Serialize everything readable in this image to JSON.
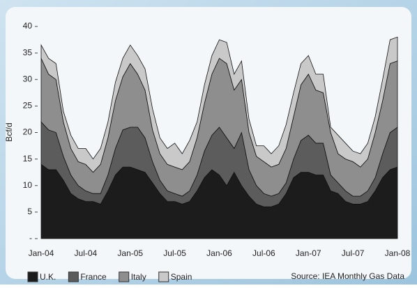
{
  "chart_data": {
    "type": "stacked_area",
    "y_label": "Bcf/d",
    "source": "Source: IEA Monthly Gas Data",
    "categories": [
      "Jan-04",
      null,
      null,
      null,
      null,
      null,
      "Jul-04",
      null,
      null,
      null,
      null,
      null,
      "Jan-05",
      null,
      null,
      null,
      null,
      null,
      "Jul-05",
      null,
      null,
      null,
      null,
      null,
      "Jan-06",
      null,
      null,
      null,
      null,
      null,
      "Jul-06",
      null,
      null,
      null,
      null,
      null,
      "Jan-07",
      null,
      null,
      null,
      null,
      null,
      "Jul-07",
      null,
      null,
      null,
      null,
      null,
      "Jan-08"
    ],
    "series": [
      {
        "name": "U.K.",
        "color": "#1c1c1c",
        "values": [
          14,
          13,
          13,
          11,
          8.5,
          7.5,
          7,
          7,
          6.5,
          9,
          12,
          13.5,
          13.5,
          13,
          12.5,
          10.5,
          8.5,
          7,
          7,
          6.5,
          7,
          9,
          11.5,
          13,
          12,
          10,
          12.5,
          10,
          8,
          6.5,
          6,
          6,
          6.5,
          8.5,
          11.5,
          12.5,
          12.5,
          12,
          12,
          9,
          8.5,
          7,
          6.5,
          6.5,
          7,
          9,
          11.5,
          13,
          13.5
        ]
      },
      {
        "name": "France",
        "color": "#5c5c5c",
        "values": [
          8,
          7.5,
          7,
          4.5,
          3.5,
          2.5,
          2,
          1.5,
          2,
          3,
          5,
          7,
          7.5,
          8,
          6.5,
          4,
          2.5,
          2,
          1.5,
          1.5,
          2,
          3,
          5,
          6.5,
          9,
          9,
          4.5,
          10,
          5,
          3.5,
          2.5,
          2,
          2,
          2,
          3.5,
          6,
          7,
          6,
          6,
          3,
          2,
          2,
          1.5,
          1.5,
          2,
          2.5,
          4.5,
          7,
          7.5
        ]
      },
      {
        "name": "Italy",
        "color": "#8e8e8e",
        "values": [
          12,
          10.5,
          10,
          6.5,
          5,
          4.5,
          5,
          4,
          5.5,
          7,
          9,
          10,
          12,
          10,
          9,
          6,
          5,
          5,
          5,
          5,
          5.5,
          7,
          9,
          11.5,
          13,
          14,
          11,
          10,
          7,
          5.5,
          6,
          5.5,
          5.5,
          6.5,
          8,
          10.5,
          11.5,
          10,
          9.5,
          8,
          5.5,
          6,
          6.5,
          5.5,
          6,
          8.5,
          10,
          13,
          12.5
        ]
      },
      {
        "name": "Spain",
        "color": "#c9c9c9",
        "values": [
          2.5,
          3,
          3,
          2,
          2.5,
          2.5,
          3,
          2.5,
          3,
          3,
          3.5,
          3.5,
          3.5,
          3.5,
          4,
          4,
          3,
          3,
          4.5,
          3,
          4,
          3,
          3.5,
          3.5,
          3.5,
          4,
          3,
          3.5,
          2.5,
          2,
          3,
          2.5,
          3.5,
          4.5,
          4.5,
          4,
          3.5,
          3,
          3.5,
          1,
          3.5,
          3,
          2,
          2.5,
          3,
          3,
          4,
          4.5,
          4.5
        ]
      }
    ],
    "ylim": [
      0,
      40
    ],
    "yticks": [
      {
        "value": 0,
        "label": "-"
      },
      5,
      10,
      15,
      20,
      25,
      30,
      35,
      40
    ]
  }
}
